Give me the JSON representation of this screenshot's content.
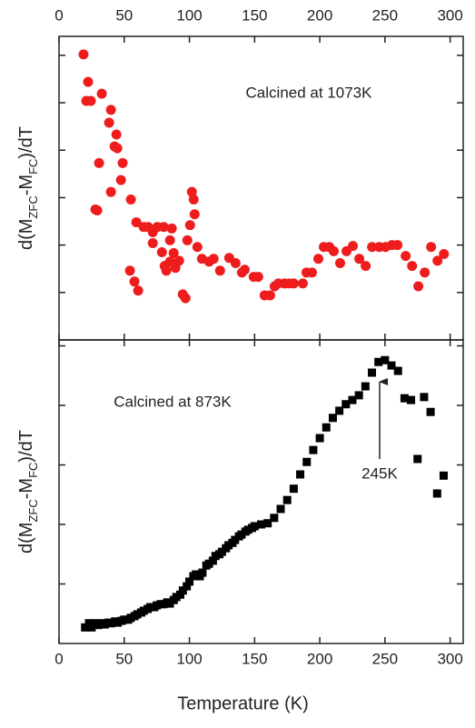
{
  "chart_data": [
    {
      "type": "scatter",
      "marker": "circle",
      "color": "#ee1c1c",
      "annotation": "Calcined at 1073K",
      "ylabel": [
        "d(M",
        "ZFC",
        "-M",
        "FC",
        ")/dT"
      ],
      "xlim": [
        0,
        310
      ],
      "xticks": [
        0,
        50,
        100,
        150,
        200,
        250,
        300
      ],
      "ylim": [
        0,
        6.4
      ],
      "yticks": [
        1,
        2,
        3,
        4,
        5,
        6
      ],
      "x": [
        18.8,
        22.3,
        20.9,
        24.4,
        32.8,
        39.8,
        30.7,
        38.4,
        44.0,
        42.6,
        29.3,
        27.9,
        47.5,
        39.8,
        44.7,
        48.8,
        55.1,
        59.3,
        54.4,
        57.9,
        60.7,
        64.9,
        68.4,
        71.9,
        71.9,
        75.4,
        80.3,
        78.9,
        82.3,
        81.0,
        85.1,
        86.5,
        85.1,
        87.9,
        89.3,
        92.1,
        94.9,
        97.0,
        98.4,
        100.5,
        101.9,
        103.3,
        104.0,
        106.1,
        109.6,
        115.1,
        118.6,
        123.5,
        130.5,
        135.4,
        140.3,
        142.4,
        149.3,
        152.8,
        157.7,
        161.9,
        165.4,
        168.2,
        173.1,
        176.6,
        180.0,
        187.0,
        189.8,
        194.0,
        198.9,
        203.1,
        207.3,
        210.7,
        215.6,
        220.5,
        225.4,
        230.3,
        235.2,
        240.1,
        245.6,
        250.5,
        255.4,
        259.6,
        265.9,
        270.8,
        275.6,
        280.5,
        285.4,
        290.3,
        295.2
      ],
      "values": [
        6.02,
        5.44,
        5.04,
        5.04,
        5.19,
        4.85,
        3.73,
        4.58,
        4.33,
        4.08,
        2.73,
        2.75,
        3.37,
        3.12,
        4.04,
        3.73,
        2.96,
        2.48,
        1.46,
        1.23,
        1.04,
        2.38,
        2.38,
        2.27,
        2.04,
        2.38,
        2.38,
        1.85,
        1.46,
        1.56,
        1.65,
        2.35,
        2.1,
        1.83,
        1.52,
        1.67,
        0.96,
        0.88,
        2.1,
        2.42,
        3.12,
        2.96,
        2.65,
        1.96,
        1.71,
        1.65,
        1.71,
        1.46,
        1.73,
        1.62,
        1.42,
        1.48,
        1.33,
        1.33,
        0.94,
        0.94,
        1.13,
        1.19,
        1.19,
        1.19,
        1.19,
        1.19,
        1.42,
        1.42,
        1.71,
        1.96,
        1.96,
        1.87,
        1.62,
        1.87,
        1.98,
        1.71,
        1.56,
        1.96,
        1.96,
        1.96,
        2.0,
        2.0,
        1.77,
        1.56,
        1.13,
        1.42,
        1.96,
        1.67,
        1.81
      ]
    },
    {
      "type": "scatter",
      "marker": "square",
      "color": "#000000",
      "annotation": "Calcined at 873K",
      "arrow_label": "245K",
      "ylabel": [
        "d(M",
        "ZFC",
        "-M",
        "FC",
        ")/dT"
      ],
      "xlabel": "Temperature (K)",
      "xlim": [
        0,
        310
      ],
      "xticks": [
        0,
        50,
        100,
        150,
        200,
        250,
        300
      ],
      "ylim": [
        0,
        5.1
      ],
      "yticks": [
        1,
        2,
        3,
        4,
        5
      ],
      "x": [
        20,
        23,
        25,
        28,
        30,
        33,
        35,
        38,
        40,
        43,
        45,
        48,
        50,
        53,
        55,
        58,
        60,
        63,
        65,
        68,
        70,
        73,
        75,
        78,
        80,
        83,
        85,
        88,
        90,
        93,
        95,
        98,
        100,
        103,
        105,
        108,
        110,
        113,
        115,
        118,
        120,
        123,
        125,
        128,
        130,
        133,
        135,
        138,
        140,
        143,
        145,
        148,
        150,
        155,
        160,
        165,
        170,
        175,
        180,
        185,
        190,
        195,
        200,
        205,
        210,
        215,
        220,
        225,
        230,
        235,
        240,
        245,
        250,
        255,
        260,
        265,
        270,
        275,
        280,
        285,
        290,
        295
      ],
      "values": [
        0.27,
        0.34,
        0.27,
        0.34,
        0.31,
        0.34,
        0.32,
        0.35,
        0.34,
        0.37,
        0.35,
        0.38,
        0.4,
        0.4,
        0.43,
        0.46,
        0.49,
        0.52,
        0.55,
        0.58,
        0.61,
        0.61,
        0.64,
        0.66,
        0.66,
        0.69,
        0.67,
        0.73,
        0.78,
        0.82,
        0.89,
        0.96,
        1.04,
        1.13,
        1.16,
        1.13,
        1.19,
        1.31,
        1.34,
        1.39,
        1.47,
        1.5,
        1.54,
        1.6,
        1.65,
        1.69,
        1.74,
        1.8,
        1.83,
        1.88,
        1.91,
        1.94,
        1.97,
        2.0,
        2.02,
        2.11,
        2.26,
        2.41,
        2.6,
        2.84,
        3.05,
        3.25,
        3.45,
        3.63,
        3.79,
        3.91,
        4.02,
        4.09,
        4.17,
        4.32,
        4.55,
        4.73,
        4.76,
        4.67,
        4.58,
        4.12,
        4.09,
        3.1,
        4.14,
        3.89,
        2.52,
        2.82
      ]
    }
  ]
}
